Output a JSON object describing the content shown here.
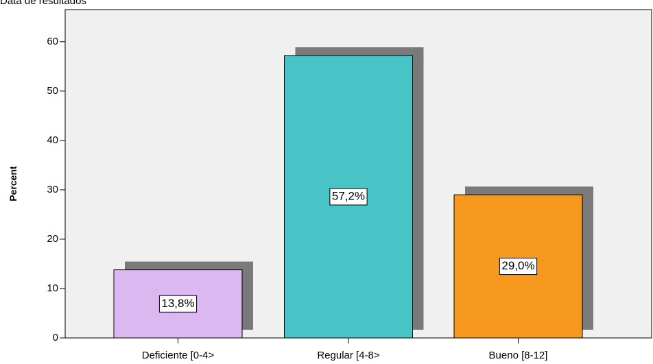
{
  "chart_data": {
    "type": "bar",
    "title": "Data de resultados",
    "y_label": "Percent",
    "categories": [
      "Deficiente [0-4>",
      "Regular [4-8>",
      "Bueno [8-12]"
    ],
    "values": [
      13.8,
      57.2,
      29.0
    ],
    "value_labels": [
      "13,8%",
      "57,2%",
      "29,0%"
    ],
    "colors": [
      "#dcb8f0",
      "#48c3c6",
      "#f8991f"
    ],
    "shadow_color": "#7a7a7a",
    "ylim": [
      0,
      66.5
    ],
    "yticks": [
      0,
      10,
      20,
      30,
      40,
      50,
      60
    ],
    "grid": false
  }
}
